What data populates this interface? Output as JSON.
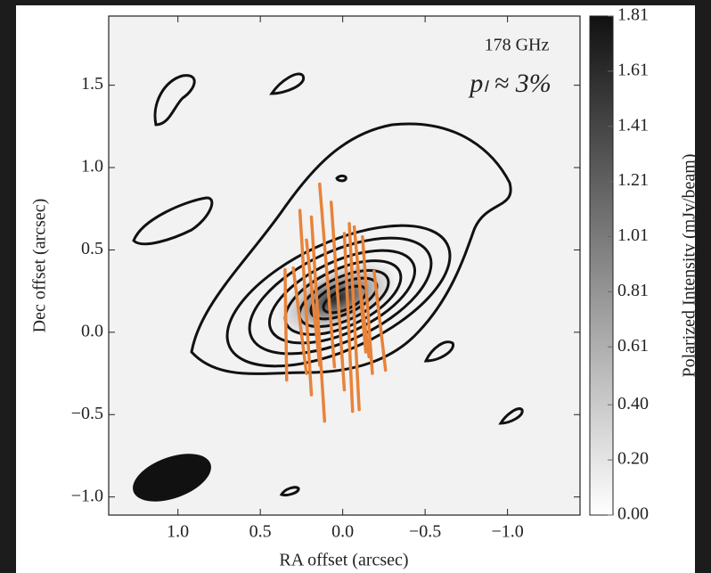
{
  "chart_data": {
    "type": "map",
    "xlabel": "RA offset (arcsec)",
    "ylabel": "Dec offset (arcsec)",
    "xlim": [
      1.42,
      -1.44
    ],
    "ylim": [
      -1.11,
      1.92
    ],
    "xticks": [
      {
        "value": 1.0,
        "label": "1.0"
      },
      {
        "value": 0.5,
        "label": "0.5"
      },
      {
        "value": 0,
        "label": "0.0"
      },
      {
        "value": -0.5,
        "label": "−0.5"
      },
      {
        "value": -1.0,
        "label": "−1.0"
      }
    ],
    "yticks": [
      {
        "value": 1.5,
        "label": "1.5"
      },
      {
        "value": 1.0,
        "label": "1.0"
      },
      {
        "value": 0.5,
        "label": "0.5"
      },
      {
        "value": 0,
        "label": "0.0"
      },
      {
        "value": -0.5,
        "label": "−0.5"
      },
      {
        "value": -1.0,
        "label": "−1.0"
      }
    ],
    "annotations": [
      "178 GHz",
      "pₗ ≈ 3%"
    ],
    "colorbar": {
      "label": "Polarized Intensity (mJy/beam)",
      "clim": [
        0,
        1.81
      ],
      "ticks": [
        1.81,
        1.61,
        1.41,
        1.21,
        1.01,
        0.81,
        0.61,
        {
          "value": 0.4,
          "label": "0.40"
        },
        {
          "value": 0.2,
          "label": "0.20"
        },
        {
          "value": 0,
          "label": "0.00"
        }
      ]
    },
    "vector_color": "#e8833a",
    "vectors": [
      {
        "x1": 0.35,
        "y1": 0.38,
        "x2": 0.34,
        "y2": -0.29
      },
      {
        "x1": 0.26,
        "y1": 0.74,
        "x2": 0.19,
        "y2": -0.38
      },
      {
        "x1": 0.19,
        "y1": 0.7,
        "x2": 0.11,
        "y2": -0.54
      },
      {
        "x1": 0.14,
        "y1": 0.9,
        "x2": 0.05,
        "y2": -0.21
      },
      {
        "x1": 0.07,
        "y1": 0.79,
        "x2": -0.01,
        "y2": -0.35
      },
      {
        "x1": -0.01,
        "y1": 0.6,
        "x2": -0.06,
        "y2": -0.48
      },
      {
        "x1": -0.04,
        "y1": 0.66,
        "x2": -0.1,
        "y2": -0.47
      },
      {
        "x1": -0.07,
        "y1": 0.64,
        "x2": -0.14,
        "y2": -0.12
      },
      {
        "x1": -0.12,
        "y1": 0.58,
        "x2": -0.18,
        "y2": -0.25
      },
      {
        "x1": -0.09,
        "y1": 0.39,
        "x2": -0.16,
        "y2": -0.15
      },
      {
        "x1": -0.19,
        "y1": 0.37,
        "x2": -0.26,
        "y2": -0.23
      },
      {
        "x1": 0.22,
        "y1": 0.56,
        "x2": 0.14,
        "y2": -0.2
      },
      {
        "x1": 0.3,
        "y1": 0.39,
        "x2": 0.22,
        "y2": -0.25
      }
    ]
  }
}
